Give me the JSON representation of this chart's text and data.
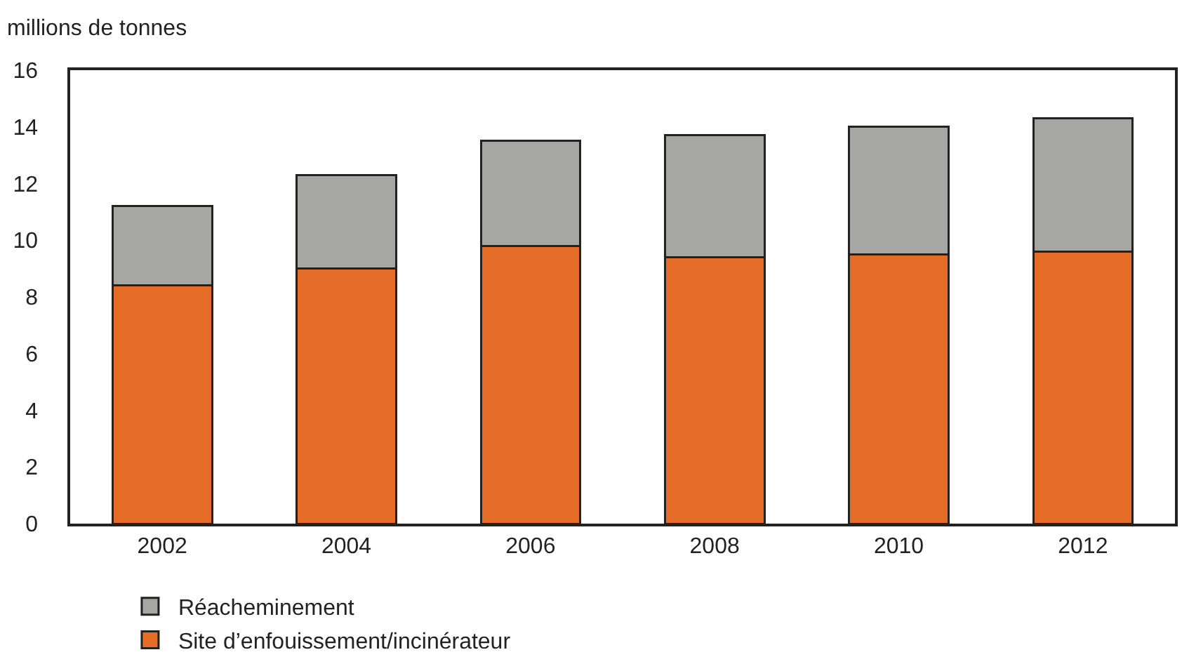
{
  "chart_data": {
    "type": "bar",
    "ylabel": "millions de tonnes",
    "categories": [
      "2002",
      "2004",
      "2006",
      "2008",
      "2010",
      "2012"
    ],
    "stacked": true,
    "series": [
      {
        "name": "Site d’enfouissement/incinérateur",
        "color": "#e66d28",
        "values": [
          8.4,
          9.0,
          9.8,
          9.4,
          9.5,
          9.6
        ]
      },
      {
        "name": "Réacheminement",
        "color": "#a6a6a4",
        "values": [
          2.8,
          3.3,
          3.7,
          4.3,
          4.5,
          4.7
        ]
      }
    ],
    "ylim": [
      0,
      16
    ],
    "yticks": [
      0,
      2,
      4,
      6,
      8,
      10,
      12,
      14,
      16
    ],
    "grid": false,
    "legend": "bottom"
  }
}
